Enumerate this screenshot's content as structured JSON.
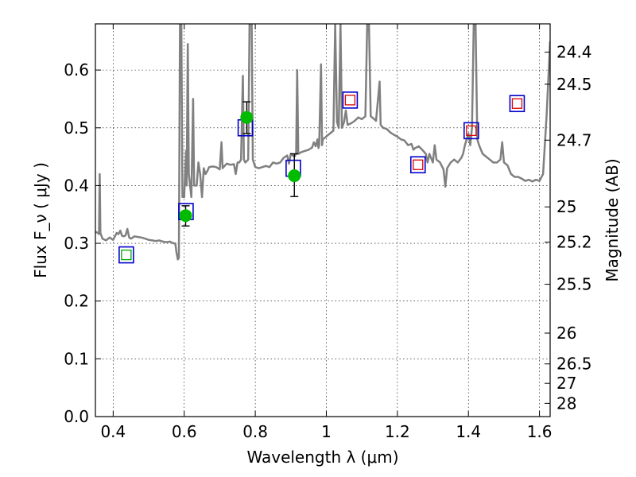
{
  "chart_data": {
    "type": "line",
    "xlabel": "Wavelength  λ (μm)",
    "ylabel": "Flux  F_ν  ( μJy )",
    "ylabel_right": "Magnitude (AB)",
    "xlim": [
      0.35,
      1.63
    ],
    "ylim": [
      0.0,
      0.68
    ],
    "x_ticks": [
      0.4,
      0.6,
      0.8,
      1.0,
      1.2,
      1.4,
      1.6
    ],
    "x_tick_labels": [
      "0.4",
      "0.6",
      "0.8",
      "1",
      "1.2",
      "1.4",
      "1.6"
    ],
    "y_ticks": [
      0.0,
      0.1,
      0.2,
      0.3,
      0.4,
      0.5,
      0.6
    ],
    "y_tick_labels": [
      "0.0",
      "0.1",
      "0.2",
      "0.3",
      "0.4",
      "0.5",
      "0.6"
    ],
    "mag_ticks": [
      24.4,
      24.5,
      24.7,
      25,
      25.2,
      25.5,
      26,
      26.5,
      27,
      28
    ],
    "mag_tick_labels": [
      "24.4",
      "24.5",
      "24.7",
      "25",
      "25.2",
      "25.5",
      "26",
      "26.5",
      "27",
      "28"
    ],
    "grid": true,
    "colors": {
      "spectrum": "#808080",
      "box_outer": "#0000cc",
      "box_inner_red": "#dd0000",
      "box_inner_green": "#00aa00",
      "point": "#00bb00",
      "errorbar": "#000000"
    },
    "spectrum": [
      [
        0.35,
        0.32
      ],
      [
        0.357,
        0.318
      ],
      [
        0.36,
        0.316
      ],
      [
        0.362,
        0.42
      ],
      [
        0.364,
        0.318
      ],
      [
        0.37,
        0.308
      ],
      [
        0.38,
        0.305
      ],
      [
        0.39,
        0.31
      ],
      [
        0.4,
        0.306
      ],
      [
        0.405,
        0.312
      ],
      [
        0.41,
        0.318
      ],
      [
        0.415,
        0.316
      ],
      [
        0.42,
        0.322
      ],
      [
        0.425,
        0.313
      ],
      [
        0.43,
        0.312
      ],
      [
        0.435,
        0.314
      ],
      [
        0.44,
        0.325
      ],
      [
        0.445,
        0.31
      ],
      [
        0.45,
        0.308
      ],
      [
        0.46,
        0.312
      ],
      [
        0.47,
        0.311
      ],
      [
        0.48,
        0.31
      ],
      [
        0.49,
        0.308
      ],
      [
        0.5,
        0.306
      ],
      [
        0.51,
        0.305
      ],
      [
        0.52,
        0.304
      ],
      [
        0.53,
        0.305
      ],
      [
        0.54,
        0.303
      ],
      [
        0.55,
        0.302
      ],
      [
        0.56,
        0.303
      ],
      [
        0.57,
        0.3
      ],
      [
        0.575,
        0.3
      ],
      [
        0.578,
        0.285
      ],
      [
        0.582,
        0.272
      ],
      [
        0.585,
        0.275
      ],
      [
        0.588,
        0.68
      ],
      [
        0.592,
        0.68
      ],
      [
        0.595,
        0.38
      ],
      [
        0.6,
        0.38
      ],
      [
        0.605,
        0.46
      ],
      [
        0.607,
        0.4
      ],
      [
        0.61,
        0.645
      ],
      [
        0.613,
        0.42
      ],
      [
        0.62,
        0.38
      ],
      [
        0.625,
        0.55
      ],
      [
        0.628,
        0.4
      ],
      [
        0.635,
        0.4
      ],
      [
        0.64,
        0.44
      ],
      [
        0.645,
        0.42
      ],
      [
        0.65,
        0.38
      ],
      [
        0.655,
        0.43
      ],
      [
        0.66,
        0.42
      ],
      [
        0.665,
        0.425
      ],
      [
        0.67,
        0.432
      ],
      [
        0.68,
        0.433
      ],
      [
        0.69,
        0.432
      ],
      [
        0.7,
        0.428
      ],
      [
        0.705,
        0.475
      ],
      [
        0.708,
        0.43
      ],
      [
        0.715,
        0.435
      ],
      [
        0.72,
        0.438
      ],
      [
        0.73,
        0.436
      ],
      [
        0.74,
        0.437
      ],
      [
        0.745,
        0.42
      ],
      [
        0.75,
        0.44
      ],
      [
        0.755,
        0.44
      ],
      [
        0.76,
        0.445
      ],
      [
        0.765,
        0.59
      ],
      [
        0.768,
        0.445
      ],
      [
        0.772,
        0.44
      ],
      [
        0.78,
        0.445
      ],
      [
        0.784,
        0.68
      ],
      [
        0.79,
        0.68
      ],
      [
        0.793,
        0.445
      ],
      [
        0.8,
        0.432
      ],
      [
        0.81,
        0.43
      ],
      [
        0.82,
        0.432
      ],
      [
        0.83,
        0.434
      ],
      [
        0.84,
        0.432
      ],
      [
        0.85,
        0.44
      ],
      [
        0.86,
        0.438
      ],
      [
        0.87,
        0.44
      ],
      [
        0.88,
        0.448
      ],
      [
        0.89,
        0.452
      ],
      [
        0.895,
        0.438
      ],
      [
        0.9,
        0.455
      ],
      [
        0.91,
        0.45
      ],
      [
        0.915,
        0.455
      ],
      [
        0.918,
        0.6
      ],
      [
        0.921,
        0.455
      ],
      [
        0.93,
        0.458
      ],
      [
        0.94,
        0.46
      ],
      [
        0.95,
        0.462
      ],
      [
        0.96,
        0.466
      ],
      [
        0.965,
        0.475
      ],
      [
        0.97,
        0.468
      ],
      [
        0.975,
        0.48
      ],
      [
        0.978,
        0.465
      ],
      [
        0.98,
        0.47
      ],
      [
        0.985,
        0.61
      ],
      [
        0.988,
        0.47
      ],
      [
        0.99,
        0.48
      ],
      [
        1.0,
        0.485
      ],
      [
        1.01,
        0.49
      ],
      [
        1.02,
        0.495
      ],
      [
        1.025,
        0.68
      ],
      [
        1.03,
        0.51
      ],
      [
        1.035,
        0.5
      ],
      [
        1.04,
        0.68
      ],
      [
        1.044,
        0.5
      ],
      [
        1.05,
        0.51
      ],
      [
        1.055,
        0.53
      ],
      [
        1.06,
        0.505
      ],
      [
        1.07,
        0.508
      ],
      [
        1.08,
        0.512
      ],
      [
        1.09,
        0.518
      ],
      [
        1.1,
        0.515
      ],
      [
        1.11,
        0.52
      ],
      [
        1.115,
        0.68
      ],
      [
        1.12,
        0.68
      ],
      [
        1.125,
        0.52
      ],
      [
        1.135,
        0.515
      ],
      [
        1.14,
        0.512
      ],
      [
        1.15,
        0.58
      ],
      [
        1.153,
        0.505
      ],
      [
        1.16,
        0.5
      ],
      [
        1.17,
        0.498
      ],
      [
        1.18,
        0.492
      ],
      [
        1.19,
        0.488
      ],
      [
        1.2,
        0.485
      ],
      [
        1.21,
        0.48
      ],
      [
        1.22,
        0.478
      ],
      [
        1.23,
        0.47
      ],
      [
        1.24,
        0.472
      ],
      [
        1.245,
        0.462
      ],
      [
        1.25,
        0.465
      ],
      [
        1.26,
        0.468
      ],
      [
        1.27,
        0.462
      ],
      [
        1.28,
        0.455
      ],
      [
        1.285,
        0.44
      ],
      [
        1.29,
        0.455
      ],
      [
        1.3,
        0.44
      ],
      [
        1.305,
        0.47
      ],
      [
        1.31,
        0.445
      ],
      [
        1.32,
        0.44
      ],
      [
        1.33,
        0.428
      ],
      [
        1.335,
        0.398
      ],
      [
        1.34,
        0.43
      ],
      [
        1.35,
        0.44
      ],
      [
        1.36,
        0.445
      ],
      [
        1.37,
        0.44
      ],
      [
        1.38,
        0.448
      ],
      [
        1.385,
        0.455
      ],
      [
        1.39,
        0.47
      ],
      [
        1.4,
        0.49
      ],
      [
        1.405,
        0.47
      ],
      [
        1.41,
        0.5
      ],
      [
        1.415,
        0.68
      ],
      [
        1.42,
        0.68
      ],
      [
        1.425,
        0.48
      ],
      [
        1.43,
        0.47
      ],
      [
        1.44,
        0.455
      ],
      [
        1.45,
        0.45
      ],
      [
        1.46,
        0.445
      ],
      [
        1.47,
        0.44
      ],
      [
        1.48,
        0.44
      ],
      [
        1.49,
        0.445
      ],
      [
        1.495,
        0.475
      ],
      [
        1.5,
        0.44
      ],
      [
        1.51,
        0.435
      ],
      [
        1.52,
        0.42
      ],
      [
        1.53,
        0.415
      ],
      [
        1.54,
        0.415
      ],
      [
        1.55,
        0.412
      ],
      [
        1.56,
        0.408
      ],
      [
        1.57,
        0.41
      ],
      [
        1.58,
        0.407
      ],
      [
        1.59,
        0.41
      ],
      [
        1.6,
        0.408
      ],
      [
        1.61,
        0.42
      ],
      [
        1.62,
        0.52
      ],
      [
        1.63,
        0.65
      ]
    ],
    "boxes": [
      {
        "x": 0.437,
        "y": 0.28,
        "inner": "green"
      },
      {
        "x": 0.605,
        "y": 0.355,
        "inner": "none"
      },
      {
        "x": 0.772,
        "y": 0.5,
        "inner": "none"
      },
      {
        "x": 0.907,
        "y": 0.43,
        "inner": "none"
      },
      {
        "x": 1.067,
        "y": 0.548,
        "inner": "red"
      },
      {
        "x": 1.258,
        "y": 0.436,
        "inner": "red"
      },
      {
        "x": 1.408,
        "y": 0.495,
        "inner": "red"
      },
      {
        "x": 1.537,
        "y": 0.542,
        "inner": "red"
      }
    ],
    "points": [
      {
        "x": 0.604,
        "y": 0.348,
        "ylow": 0.33,
        "yhigh": 0.365
      },
      {
        "x": 0.776,
        "y": 0.518,
        "ylow": 0.49,
        "yhigh": 0.545
      },
      {
        "x": 0.91,
        "y": 0.417,
        "ylow": 0.381,
        "yhigh": 0.455
      }
    ]
  }
}
